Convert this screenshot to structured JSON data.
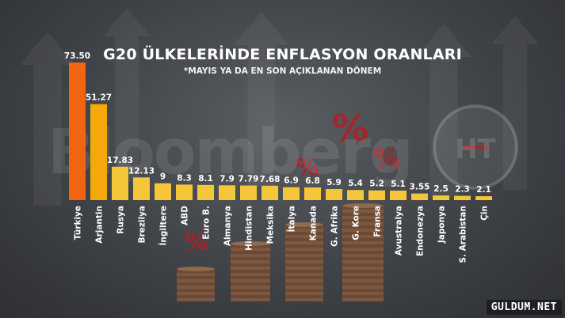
{
  "header": {
    "title": "G20 ÜLKELERİNDE ENFLASYON ORANLARI",
    "subtitle": "*MAYIS YA DA EN SON AÇIKLANAN DÖNEM"
  },
  "watermark": "Bloomberg",
  "logo_text": "HT",
  "site_badge": "GULDUM.NET",
  "colors": {
    "top_bar": "#f06414",
    "second_bar": "#f4a80c",
    "other_bars": "#f5c63a",
    "percent_symbols": "#b21f24"
  },
  "chart_data": {
    "type": "bar",
    "title": "G20 ÜLKELERİNDE ENFLASYON ORANLARI",
    "subtitle": "*MAYIS YA DA EN SON AÇIKLANAN DÖNEM",
    "categories": [
      "Türkiye",
      "Arjantin",
      "Rusya",
      "Brezilya",
      "İngiltere",
      "ABD",
      "Euro B.",
      "Almanya",
      "Hindistan",
      "Meksika",
      "İtalya",
      "Kanada",
      "G. Afrika",
      "G. Kore",
      "Fransa",
      "Avustralya",
      "Endonezya",
      "Japonya",
      "S. Arabistan",
      "Çin"
    ],
    "values": [
      73.5,
      51.27,
      17.83,
      12.13,
      9,
      8.3,
      8.1,
      7.9,
      7.79,
      7.68,
      6.9,
      6.8,
      5.9,
      5.4,
      5.2,
      5.1,
      3.55,
      2.5,
      2.3,
      2.1
    ],
    "value_labels": [
      "73.50",
      "51.27",
      "17.83",
      "12.13",
      "9",
      "8.3",
      "8.1",
      "7.9",
      "7.79",
      "7.68",
      "6.9",
      "6.8",
      "5.9",
      "5.4",
      "5.2",
      "5.1",
      "3.55",
      "2.5",
      "2.3",
      "2.1"
    ],
    "ylim": [
      0,
      73.5
    ],
    "xlabel": "",
    "ylabel": "",
    "grid": false,
    "legend": "none"
  }
}
